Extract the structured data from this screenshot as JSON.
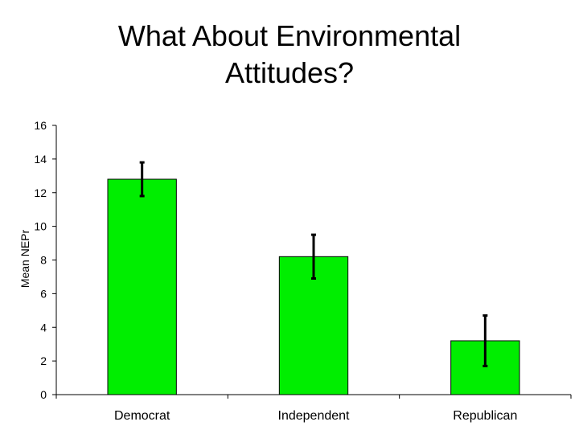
{
  "chart_data": {
    "type": "bar",
    "title": "What About Environmental\nAttitudes?",
    "ylabel": "Mean NEPr",
    "xlabel": "",
    "categories": [
      "Democrat",
      "Independent",
      "Republican"
    ],
    "values": [
      12.8,
      8.2,
      3.2
    ],
    "error_low": [
      11.8,
      6.9,
      1.7
    ],
    "error_high": [
      13.8,
      9.5,
      4.7
    ],
    "ylim": [
      0,
      16
    ],
    "yticks": [
      0,
      2,
      4,
      6,
      8,
      10,
      12,
      14,
      16
    ],
    "grid": false,
    "bar_color": "#00ee00",
    "bar_stroke": "#000000"
  }
}
